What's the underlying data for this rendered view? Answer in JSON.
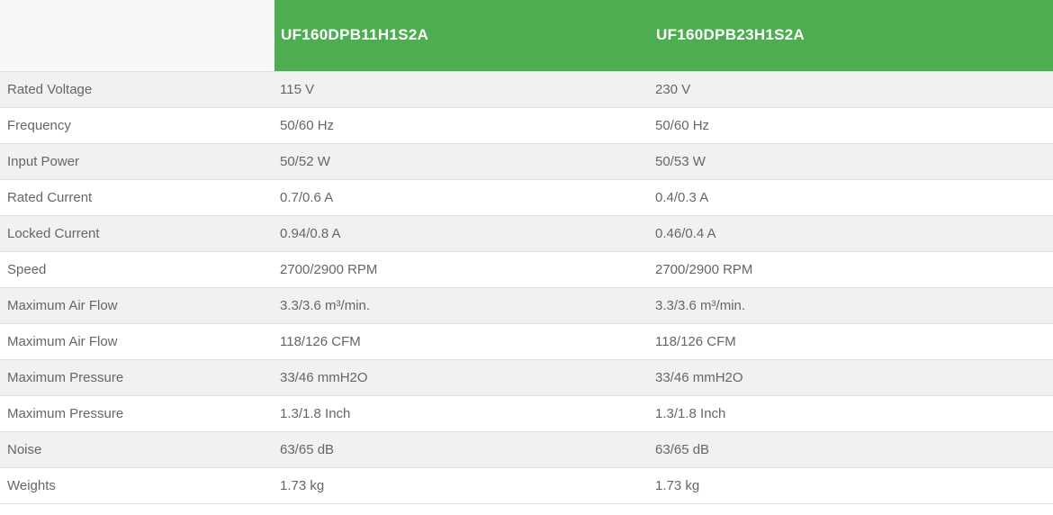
{
  "table": {
    "header": {
      "corner": "",
      "model_columns": [
        "UF160DPB11H1S2A",
        "UF160DPB23H1S2A"
      ]
    },
    "rows": [
      {
        "label": "Rated Voltage",
        "value1": "115 V",
        "value2": "230 V"
      },
      {
        "label": "Frequency",
        "value1": "50/60 Hz",
        "value2": "50/60 Hz"
      },
      {
        "label": "Input Power",
        "value1": "50/52 W",
        "value2": "50/53 W"
      },
      {
        "label": "Rated Current",
        "value1": "0.7/0.6 A",
        "value2": "0.4/0.3 A"
      },
      {
        "label": "Locked Current",
        "value1": "0.94/0.8 A",
        "value2": "0.46/0.4 A"
      },
      {
        "label": "Speed",
        "value1": "2700/2900 RPM",
        "value2": "2700/2900 RPM"
      },
      {
        "label": "Maximum Air Flow",
        "value1": "3.3/3.6 m³/min.",
        "value2": "3.3/3.6 m³/min."
      },
      {
        "label": "Maximum Air Flow",
        "value1": "118/126 CFM",
        "value2": "118/126 CFM"
      },
      {
        "label": "Maximum Pressure",
        "value1": "33/46 mmH2O",
        "value2": "33/46 mmH2O"
      },
      {
        "label": "Maximum Pressure",
        "value1": "1.3/1.8 Inch",
        "value2": "1.3/1.8 Inch"
      },
      {
        "label": "Noise",
        "value1": "63/65 dB",
        "value2": "63/65 dB"
      },
      {
        "label": "Weights",
        "value1": "1.73 kg",
        "value2": "1.73 kg"
      }
    ],
    "colors": {
      "header_green": "#4cae50",
      "header_text": "#ffffff",
      "corner_bg": "#f7f7f7",
      "stripe_bg": "#f1f1f1",
      "row_bg": "#ffffff",
      "border": "#e0e0e0",
      "body_text": "#666666"
    }
  }
}
